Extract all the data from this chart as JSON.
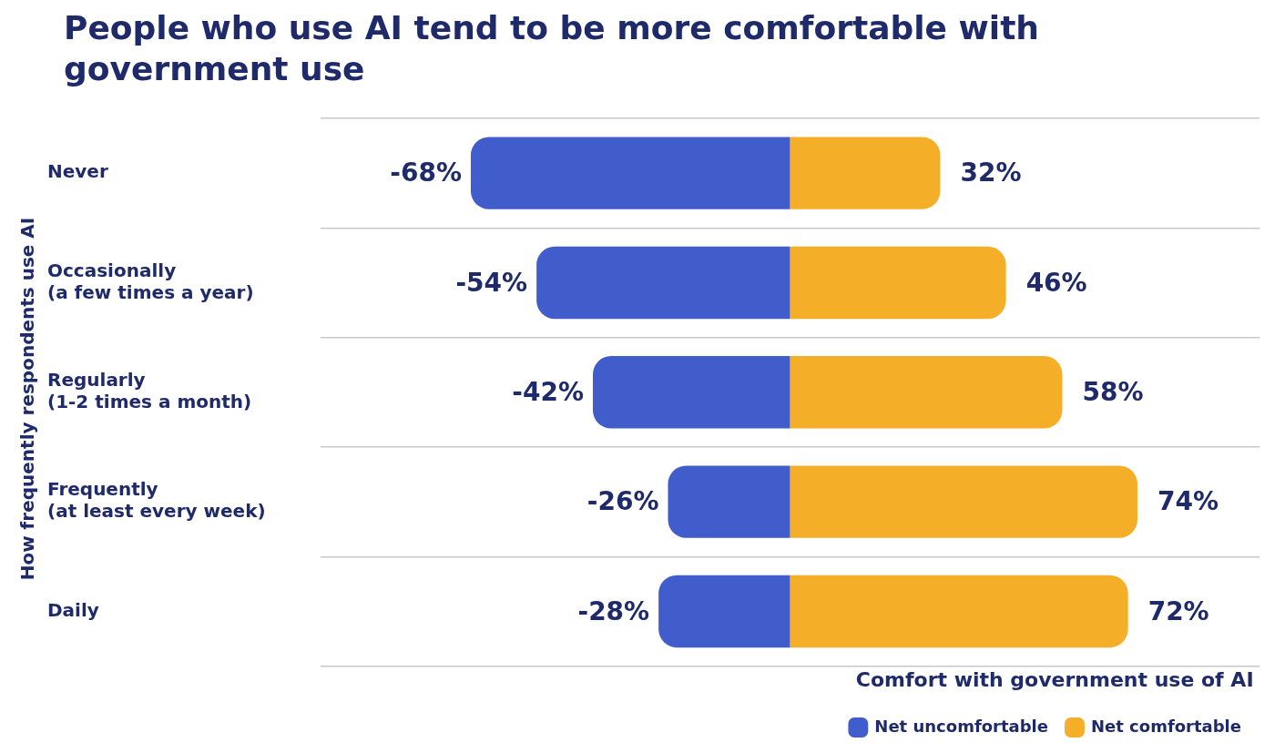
{
  "chart_data": {
    "type": "bar",
    "orientation": "horizontal",
    "stacked": true,
    "title": "People who use AI tend to be more comfortable with government use",
    "ylabel": "How frequently respondents use AI",
    "legend_title": "Comfort with government use of AI",
    "categories": [
      "Never",
      "Occasionally\n(a few times a year)",
      "Regularly\n(1-2 times a month)",
      "Frequently\n(at least every week)",
      "Daily"
    ],
    "series": [
      {
        "name": "Net uncomfortable",
        "color": "#405dcb",
        "values": [
          -68,
          -54,
          -42,
          -26,
          -28
        ],
        "value_labels": [
          "-68%",
          "-54%",
          "-42%",
          "-26%",
          "-28%"
        ]
      },
      {
        "name": "Net comfortable",
        "color": "#f5ae27",
        "values": [
          32,
          46,
          58,
          74,
          72
        ],
        "value_labels": [
          "32%",
          "46%",
          "58%",
          "74%",
          "72%"
        ]
      }
    ],
    "xlim": [
      -100,
      100
    ],
    "tick_labels": "y",
    "grid": "y",
    "legend": "bottom right"
  }
}
